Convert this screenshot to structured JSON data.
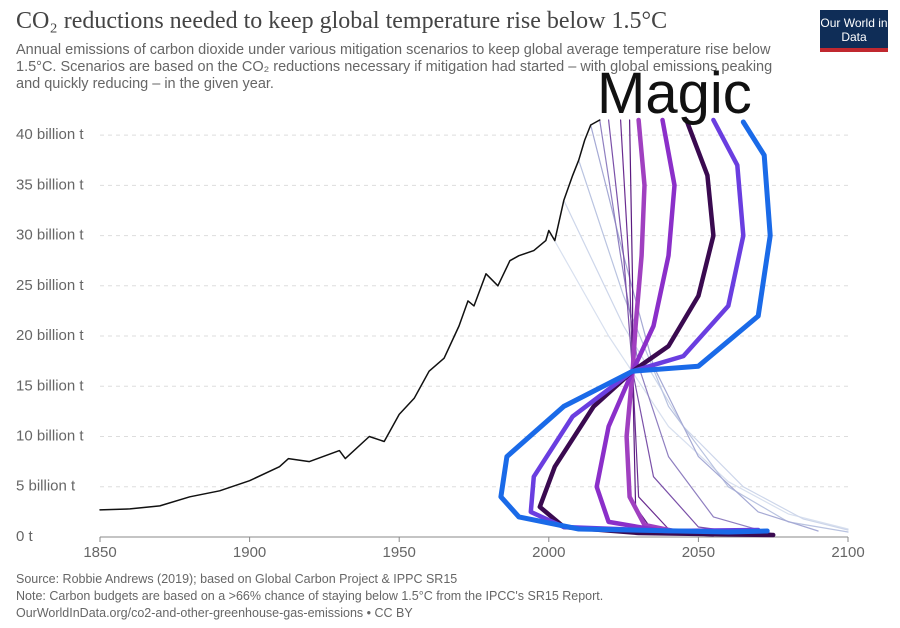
{
  "chart_data": {
    "type": "line",
    "title": "CO₂ reductions needed to keep global temperature rise below 1.5°C",
    "subtitle": "Annual emissions of carbon dioxide under various mitigation scenarios to keep global average temperature rise below 1.5°C. Scenarios are based on the CO₂ reductions necessary if mitigation had started – with global emissions peaking and quickly reducing – in the given year.",
    "logo": "Our World in Data",
    "annotation": "Magic",
    "source": "Source: Robbie Andrews (2019); based on Global Carbon Project & IPPC SR15",
    "note": "Note: Carbon budgets are based on a >66% chance of staying below 1.5°C from the IPCC's SR15 Report.",
    "url": "OurWorldInData.org/co2-and-other-greenhouse-gas-emissions • CC BY",
    "xlim": [
      1850,
      2100
    ],
    "xticks": [
      1850,
      1900,
      1950,
      2000,
      2050,
      2100
    ],
    "ylim": [
      0,
      42
    ],
    "yticks": [
      {
        "value": 0,
        "label": "0 t"
      },
      {
        "value": 5,
        "label": "5 billion t"
      },
      {
        "value": 10,
        "label": "10 billion t"
      },
      {
        "value": 15,
        "label": "15 billion t"
      },
      {
        "value": 20,
        "label": "20 billion t"
      },
      {
        "value": 25,
        "label": "25 billion t"
      },
      {
        "value": 30,
        "label": "30 billion t"
      },
      {
        "value": 35,
        "label": "35 billion t"
      },
      {
        "value": 40,
        "label": "40 billion t"
      }
    ],
    "grid": true,
    "series": [
      {
        "color": "#d8e0ef",
        "width": 1.2,
        "x": [
          2000,
          2020,
          2040,
          2060,
          2080,
          2100
        ],
        "values": [
          30.5,
          20,
          11,
          5.5,
          2.3,
          0.8
        ]
      },
      {
        "color": "#cdd6ea",
        "width": 1.2,
        "x": [
          2005,
          2025,
          2045,
          2065,
          2085,
          2100
        ],
        "values": [
          33.5,
          21,
          11,
          5,
          1.8,
          0.7
        ]
      },
      {
        "color": "#b9c3e0",
        "width": 1.2,
        "x": [
          2010,
          2025,
          2040,
          2060,
          2080,
          2100
        ],
        "values": [
          37.5,
          24,
          13,
          5,
          1.5,
          0.5
        ]
      },
      {
        "color": "#a5a9d4",
        "width": 1.2,
        "x": [
          2014,
          2025,
          2035,
          2050,
          2070,
          2090
        ],
        "values": [
          41,
          28,
          17,
          8,
          2.5,
          0.6
        ]
      },
      {
        "color": "#8f7fc0",
        "width": 1.2,
        "x": [
          2017,
          2024,
          2030,
          2040,
          2055,
          2075
        ],
        "values": [
          41.5,
          28,
          17,
          8,
          2,
          0.3
        ]
      },
      {
        "color": "#7a50a8",
        "width": 1.2,
        "x": [
          2020,
          2025,
          2028,
          2035,
          2050,
          2070
        ],
        "values": [
          41.5,
          28,
          16.5,
          6,
          1,
          0.2
        ]
      },
      {
        "color": "#6a2c90",
        "width": 1.2,
        "x": [
          2024,
          2027,
          2028,
          2030,
          2040,
          2060
        ],
        "values": [
          41.5,
          26,
          16.5,
          4,
          0.8,
          0.1
        ]
      },
      {
        "color": "#5a1a80",
        "width": 1.2,
        "x": [
          2027,
          2028,
          2028,
          2029,
          2035,
          2055
        ],
        "values": [
          41.5,
          25,
          16.5,
          3,
          0.5,
          0.1
        ]
      },
      {
        "color": "#111111",
        "width": 1.5,
        "x": [
          1850,
          1860,
          1870,
          1880,
          1890,
          1900,
          1910,
          1913,
          1920,
          1930,
          1932,
          1940,
          1945,
          1950,
          1955,
          1960,
          1965,
          1970,
          1973,
          1975,
          1979,
          1983,
          1987,
          1990,
          1995,
          1999,
          2000,
          2002,
          2005,
          2008,
          2010,
          2012,
          2014,
          2017
        ],
        "values": [
          2.7,
          2.8,
          3.1,
          4.0,
          4.6,
          5.6,
          7.0,
          7.8,
          7.5,
          8.6,
          7.8,
          10.0,
          9.5,
          12.2,
          13.8,
          16.5,
          17.8,
          21.0,
          23.5,
          23.0,
          26.2,
          25.0,
          27.5,
          28.0,
          28.5,
          29.5,
          30.5,
          29.5,
          33.5,
          36.0,
          37.5,
          39.5,
          41.0,
          41.5
        ]
      },
      {
        "color": "#a040c0",
        "width": 4.5,
        "x": [
          2030,
          2032,
          2031,
          2029,
          2028,
          2026,
          2027,
          2032,
          2045,
          2060
        ],
        "values": [
          41.5,
          35,
          28,
          21,
          16.5,
          10,
          4,
          1.2,
          0.4,
          0.3
        ]
      },
      {
        "color": "#8b2fc9",
        "width": 4.5,
        "x": [
          2038,
          2042,
          2040,
          2035,
          2028,
          2020,
          2016,
          2020,
          2040,
          2068
        ],
        "values": [
          41.5,
          35,
          28,
          21,
          16.5,
          11,
          5,
          1.5,
          0.5,
          0.3
        ]
      },
      {
        "color": "#3a0a50",
        "width": 4.5,
        "x": [
          2046,
          2053,
          2055,
          2050,
          2040,
          2028,
          2015,
          2002,
          1997,
          2005,
          2030,
          2075
        ],
        "values": [
          41.5,
          36,
          30,
          24,
          19,
          16.5,
          13,
          7,
          3,
          1,
          0.4,
          0.2
        ]
      },
      {
        "color": "#6a3ee0",
        "width": 4.5,
        "x": [
          2055,
          2063,
          2065,
          2060,
          2045,
          2028,
          2008,
          1995,
          1994,
          2005,
          2040,
          2070
        ],
        "values": [
          41.5,
          37,
          30,
          23,
          18,
          16.5,
          12,
          6,
          2.5,
          1,
          0.6,
          0.7
        ]
      },
      {
        "color": "#1a6ae8",
        "width": 5,
        "x": [
          2065,
          2072,
          2074,
          2070,
          2050,
          2028,
          2005,
          1986,
          1984,
          1990,
          2010,
          2060,
          2073
        ],
        "values": [
          41.3,
          38,
          30,
          22,
          17,
          16.5,
          13,
          8,
          4,
          2,
          0.8,
          0.5,
          0.6
        ]
      }
    ]
  }
}
